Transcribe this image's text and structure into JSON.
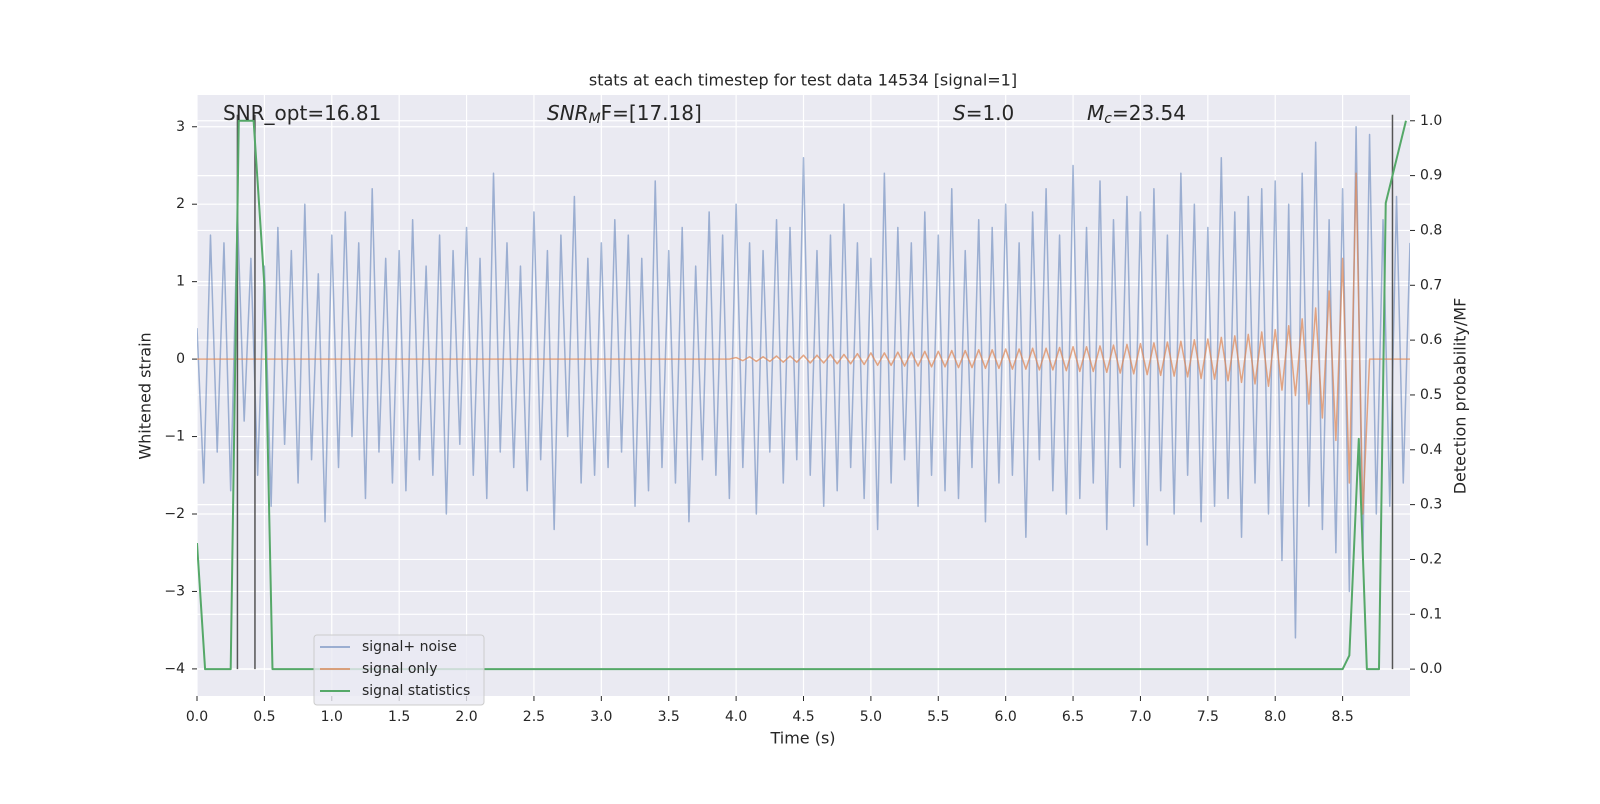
{
  "chart_data": {
    "type": "line",
    "title": "stats at each timestep for test data 14534 [signal=1]",
    "xlabel": "Time (s)",
    "ylabel": "Whitened strain",
    "y2label": "Detection probability/MF",
    "annotations": [
      [
        "SNR_opt=16.81"
      ],
      [
        "SNR",
        "M",
        "F=[17.18]"
      ],
      [
        "S",
        "=1.0"
      ],
      [
        "M",
        "c",
        "=23.54"
      ]
    ],
    "xlim": [
      0,
      9.0
    ],
    "ylim": [
      -4.35,
      3.41
    ],
    "y2lim": [
      -0.049,
      1.047
    ],
    "xticks": [
      {
        "value": 0,
        "label": "0.0"
      },
      0.5,
      {
        "value": 1,
        "label": "1.0"
      },
      1.5,
      {
        "value": 2,
        "label": "2.0"
      },
      2.5,
      {
        "value": 3,
        "label": "3.0"
      },
      3.5,
      {
        "value": 4,
        "label": "4.0"
      },
      4.5,
      {
        "value": 5,
        "label": "5.0"
      },
      5.5,
      {
        "value": 6,
        "label": "6.0"
      },
      6.5,
      {
        "value": 7,
        "label": "7.0"
      },
      7.5,
      {
        "value": 8,
        "label": "8.0"
      },
      8.5
    ],
    "yticks": [
      {
        "value": -4,
        "label": "−4"
      },
      {
        "value": -3,
        "label": "−3"
      },
      {
        "value": -2,
        "label": "−2"
      },
      {
        "value": -1,
        "label": "−1"
      },
      0,
      1,
      2,
      3
    ],
    "y2ticks": [
      {
        "value": 0,
        "label": "0.0"
      },
      0.1,
      0.2,
      0.3,
      0.4,
      0.5,
      0.6,
      0.7,
      0.8,
      0.9,
      {
        "value": 1,
        "label": "1.0"
      }
    ],
    "grid": true,
    "legend": "lower left",
    "vlines": [
      0.3,
      0.43,
      8.87
    ],
    "vline_color": "#555555",
    "x": [
      0,
      0.05,
      0.1,
      0.15,
      0.2,
      0.25,
      0.3,
      0.35,
      0.4,
      0.45,
      0.5,
      0.55,
      0.6,
      0.65,
      0.7,
      0.75,
      0.8,
      0.85,
      0.9,
      0.95,
      1,
      1.05,
      1.1,
      1.15,
      1.2,
      1.25,
      1.3,
      1.35,
      1.4,
      1.45,
      1.5,
      1.55,
      1.6,
      1.65,
      1.7,
      1.75,
      1.8,
      1.85,
      1.9,
      1.95,
      2,
      2.05,
      2.1,
      2.15,
      2.2,
      2.25,
      2.3,
      2.35,
      2.4,
      2.45,
      2.5,
      2.55,
      2.6,
      2.65,
      2.7,
      2.75,
      2.8,
      2.85,
      2.9,
      2.95,
      3,
      3.05,
      3.1,
      3.15,
      3.2,
      3.25,
      3.3,
      3.35,
      3.4,
      3.45,
      3.5,
      3.55,
      3.6,
      3.65,
      3.7,
      3.75,
      3.8,
      3.85,
      3.9,
      3.95,
      4,
      4.05,
      4.1,
      4.15,
      4.2,
      4.25,
      4.3,
      4.35,
      4.4,
      4.45,
      4.5,
      4.55,
      4.6,
      4.65,
      4.7,
      4.75,
      4.8,
      4.85,
      4.9,
      4.95,
      5,
      5.05,
      5.1,
      5.15,
      5.2,
      5.25,
      5.3,
      5.35,
      5.4,
      5.45,
      5.5,
      5.55,
      5.6,
      5.65,
      5.7,
      5.75,
      5.8,
      5.85,
      5.9,
      5.95,
      6,
      6.05,
      6.1,
      6.15,
      6.2,
      6.25,
      6.3,
      6.35,
      6.4,
      6.45,
      6.5,
      6.55,
      6.6,
      6.65,
      6.7,
      6.75,
      6.8,
      6.85,
      6.9,
      6.95,
      7,
      7.05,
      7.1,
      7.15,
      7.2,
      7.25,
      7.3,
      7.35,
      7.4,
      7.45,
      7.5,
      7.55,
      7.6,
      7.65,
      7.7,
      7.75,
      7.8,
      7.85,
      7.9,
      7.95,
      8,
      8.05,
      8.1,
      8.15,
      8.2,
      8.25,
      8.3,
      8.35,
      8.4,
      8.45,
      8.5,
      8.55,
      8.6,
      8.65,
      8.7,
      8.75,
      8.8,
      8.85,
      8.9,
      8.95,
      9
    ],
    "series": [
      {
        "name": "signal+ noise",
        "color": "#4c72b0",
        "values": [
          0.4,
          -1.6,
          1.6,
          -1.2,
          1.5,
          -1.7,
          1.9,
          -0.8,
          1.3,
          -1.5,
          1.2,
          -1.9,
          1.7,
          -1.1,
          1.4,
          -1.6,
          2.0,
          -1.3,
          1.1,
          -2.1,
          1.6,
          -1.4,
          1.9,
          -1.0,
          1.5,
          -1.8,
          2.2,
          -1.2,
          1.3,
          -1.6,
          1.4,
          -1.7,
          1.8,
          -1.3,
          1.2,
          -1.5,
          1.6,
          -2.0,
          1.4,
          -1.1,
          1.7,
          -1.5,
          1.3,
          -1.8,
          2.4,
          -1.2,
          1.5,
          -1.4,
          1.2,
          -1.7,
          1.9,
          -1.3,
          1.4,
          -2.2,
          1.6,
          -1.0,
          2.1,
          -1.6,
          1.3,
          -1.5,
          1.5,
          -1.4,
          1.8,
          -1.2,
          1.6,
          -1.9,
          1.3,
          -1.7,
          2.3,
          -1.4,
          1.4,
          -1.6,
          1.7,
          -2.1,
          1.2,
          -1.3,
          1.9,
          -1.5,
          1.6,
          -1.8,
          2.0,
          -1.4,
          1.5,
          -2.0,
          1.4,
          -1.2,
          1.8,
          -1.6,
          1.7,
          -1.3,
          2.6,
          -1.5,
          1.4,
          -1.9,
          1.6,
          -1.7,
          2.0,
          -1.4,
          1.5,
          -1.8,
          1.3,
          -2.2,
          2.4,
          -1.6,
          1.7,
          -1.3,
          1.5,
          -1.9,
          1.9,
          -1.5,
          1.6,
          -1.7,
          2.2,
          -1.8,
          1.4,
          -1.4,
          1.8,
          -2.1,
          1.7,
          -1.6,
          2.0,
          -1.5,
          1.5,
          -2.3,
          1.9,
          -1.3,
          2.2,
          -1.7,
          1.6,
          -2.0,
          2.5,
          -1.8,
          1.7,
          -1.6,
          2.3,
          -2.2,
          1.8,
          -1.4,
          2.1,
          -1.9,
          1.9,
          -2.4,
          2.2,
          -1.7,
          1.6,
          -2.0,
          2.4,
          -1.5,
          2.0,
          -2.1,
          1.7,
          -1.9,
          2.6,
          -1.8,
          1.9,
          -2.3,
          2.1,
          -1.6,
          2.2,
          -2.0,
          2.3,
          -2.6,
          2.0,
          -3.6,
          2.4,
          -1.9,
          2.8,
          -2.2,
          1.8,
          -2.5,
          2.2,
          -3.0,
          3.0,
          -2.6,
          2.9,
          -2.0,
          1.8,
          -1.9,
          2.1,
          -1.6,
          1.5
        ]
      },
      {
        "name": "signal only",
        "color": "#dd8452",
        "values": [
          0,
          0,
          0,
          0,
          0,
          0,
          0,
          0,
          0,
          0,
          0,
          0,
          0,
          0,
          0,
          0,
          0,
          0,
          0,
          0,
          0,
          0,
          0,
          0,
          0,
          0,
          0,
          0,
          0,
          0,
          0,
          0,
          0,
          0,
          0,
          0,
          0,
          0,
          0,
          0,
          0,
          0,
          0,
          0,
          0,
          0,
          0,
          0,
          0,
          0,
          0,
          0,
          0,
          0,
          0,
          0,
          0,
          0,
          0,
          0,
          0,
          0,
          0,
          0,
          0,
          0,
          0,
          0,
          0,
          0,
          0,
          0,
          0,
          0,
          0,
          0,
          0,
          0,
          0,
          0,
          0.02,
          -0.02,
          0.03,
          -0.03,
          0.03,
          -0.03,
          0.04,
          -0.04,
          0.04,
          -0.04,
          0.05,
          -0.05,
          0.05,
          -0.05,
          0.06,
          -0.06,
          0.06,
          -0.06,
          0.07,
          -0.07,
          0.08,
          -0.08,
          0.08,
          -0.08,
          0.09,
          -0.09,
          0.09,
          -0.09,
          0.1,
          -0.1,
          0.1,
          -0.1,
          0.11,
          -0.11,
          0.11,
          -0.11,
          0.12,
          -0.12,
          0.12,
          -0.12,
          0.13,
          -0.13,
          0.13,
          -0.13,
          0.14,
          -0.14,
          0.14,
          -0.14,
          0.15,
          -0.15,
          0.16,
          -0.16,
          0.16,
          -0.16,
          0.17,
          -0.17,
          0.18,
          -0.18,
          0.19,
          -0.19,
          0.2,
          -0.2,
          0.21,
          -0.21,
          0.22,
          -0.22,
          0.23,
          -0.23,
          0.25,
          -0.25,
          0.26,
          -0.26,
          0.28,
          -0.28,
          0.3,
          -0.3,
          0.32,
          -0.32,
          0.35,
          -0.35,
          0.38,
          -0.4,
          0.43,
          -0.47,
          0.52,
          -0.58,
          0.66,
          -0.76,
          0.88,
          -1.05,
          1.3,
          -1.6,
          2.4,
          -2.0,
          0,
          0,
          0,
          0,
          0,
          0,
          0
        ]
      },
      {
        "name": "signal statistics",
        "color": "#55a868",
        "axis": "y2",
        "x": [
          0,
          0.06,
          0.25,
          0.31,
          0.37,
          0.42,
          0.5,
          0.56,
          8.5,
          8.55,
          8.62,
          8.68,
          8.77,
          8.82,
          8.97
        ],
        "values": [
          0.23,
          0,
          0,
          1.0,
          1.0,
          1.0,
          0.7,
          0,
          0,
          0.025,
          0.42,
          0,
          0,
          0.85,
          1.0
        ]
      }
    ]
  }
}
